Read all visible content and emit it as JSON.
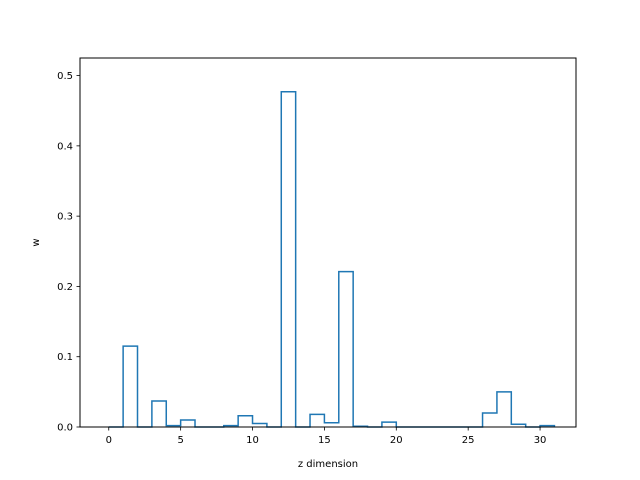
{
  "chart_data": {
    "type": "bar",
    "style": "step-histogram",
    "title": "",
    "xlabel": "z dimension",
    "ylabel": "w",
    "xlim": [
      -2,
      32.5
    ],
    "ylim": [
      0,
      0.525
    ],
    "xticks": [
      0,
      5,
      10,
      15,
      20,
      25,
      30
    ],
    "xtick_labels": [
      "0",
      "5",
      "10",
      "15",
      "20",
      "25",
      "30"
    ],
    "yticks": [
      0.0,
      0.1,
      0.2,
      0.3,
      0.4,
      0.5
    ],
    "ytick_labels": [
      "0.0",
      "0.1",
      "0.2",
      "0.3",
      "0.4",
      "0.5"
    ],
    "grid": false,
    "color": "#1f77b4",
    "x": [
      0,
      1,
      2,
      3,
      4,
      5,
      6,
      7,
      8,
      9,
      10,
      11,
      12,
      13,
      14,
      15,
      16,
      17,
      18,
      19,
      20,
      21,
      22,
      23,
      24,
      25,
      26,
      27,
      28,
      29,
      30
    ],
    "values": [
      0.0,
      0.115,
      0.0,
      0.037,
      0.002,
      0.01,
      0.0,
      0.0,
      0.002,
      0.016,
      0.005,
      0.0,
      0.477,
      0.0,
      0.018,
      0.006,
      0.221,
      0.001,
      0.0,
      0.007,
      0.0,
      0.0,
      0.0,
      0.0,
      0.0,
      0.0,
      0.02,
      0.05,
      0.004,
      0.0,
      0.002
    ]
  }
}
